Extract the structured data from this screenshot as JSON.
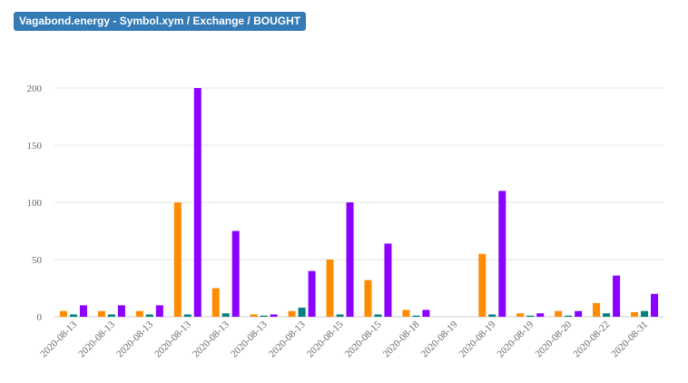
{
  "title": "Vagabond.energy - Symbol.xym / Exchange / BOUGHT",
  "chart_data": {
    "type": "bar",
    "categories": [
      "2020-08-13",
      "2020-08-13",
      "2020-08-13",
      "2020-08-13",
      "2020-08-13",
      "2020-08-13",
      "2020-08-13",
      "2020-08-15",
      "2020-08-15",
      "2020-08-18",
      "2020-08-19",
      "2020-08-19",
      "2020-08-19",
      "2020-08-20",
      "2020-08-22",
      "2020-08-31"
    ],
    "series": [
      {
        "color": "#ff8c00",
        "values": [
          5,
          5,
          5,
          100,
          25,
          2,
          5,
          50,
          32,
          6,
          0,
          55,
          3,
          5,
          12,
          4
        ]
      },
      {
        "color": "#008080",
        "values": [
          2,
          2,
          2,
          2,
          3,
          1,
          8,
          2,
          2,
          1,
          0,
          2,
          1,
          1,
          3,
          5
        ]
      },
      {
        "color": "#8b00ff",
        "values": [
          10,
          10,
          10,
          200,
          75,
          2,
          40,
          100,
          64,
          6,
          0,
          110,
          3,
          5,
          36,
          20
        ]
      }
    ],
    "yticks": [
      0,
      50,
      100,
      150,
      200
    ],
    "ylim": [
      0,
      200
    ],
    "grid": true
  }
}
